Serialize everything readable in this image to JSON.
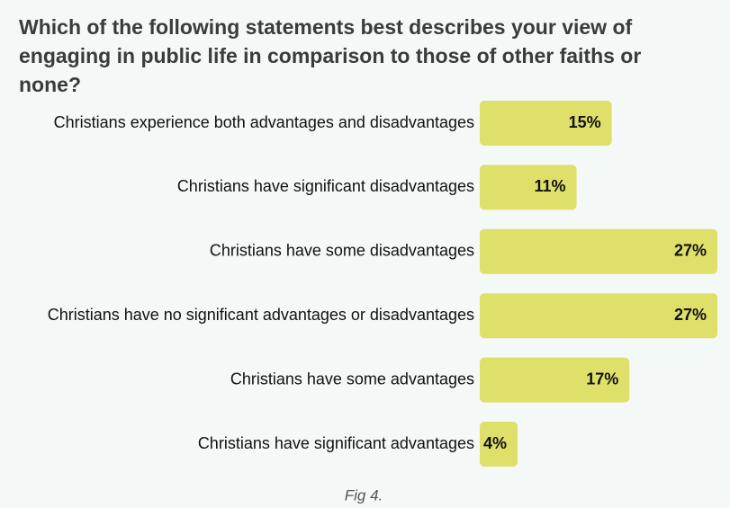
{
  "chart_data": {
    "type": "bar",
    "orientation": "horizontal",
    "title": "Which of the following statements best describes your view of engaging in public life in comparison to those of other faiths or none?",
    "categories": [
      "Christians experience both advantages and disadvantages",
      "Christians have significant disadvantages",
      "Christians have some disadvantages",
      "Christians have no significant advantages or disadvantages",
      "Christians have some advantages",
      "Christians have significant advantages"
    ],
    "values": [
      15,
      11,
      27,
      27,
      17,
      4
    ],
    "value_labels": [
      "15%",
      "11%",
      "27%",
      "27%",
      "17%",
      "4%"
    ],
    "color": "#dfe06a",
    "caption": "Fig 4."
  }
}
